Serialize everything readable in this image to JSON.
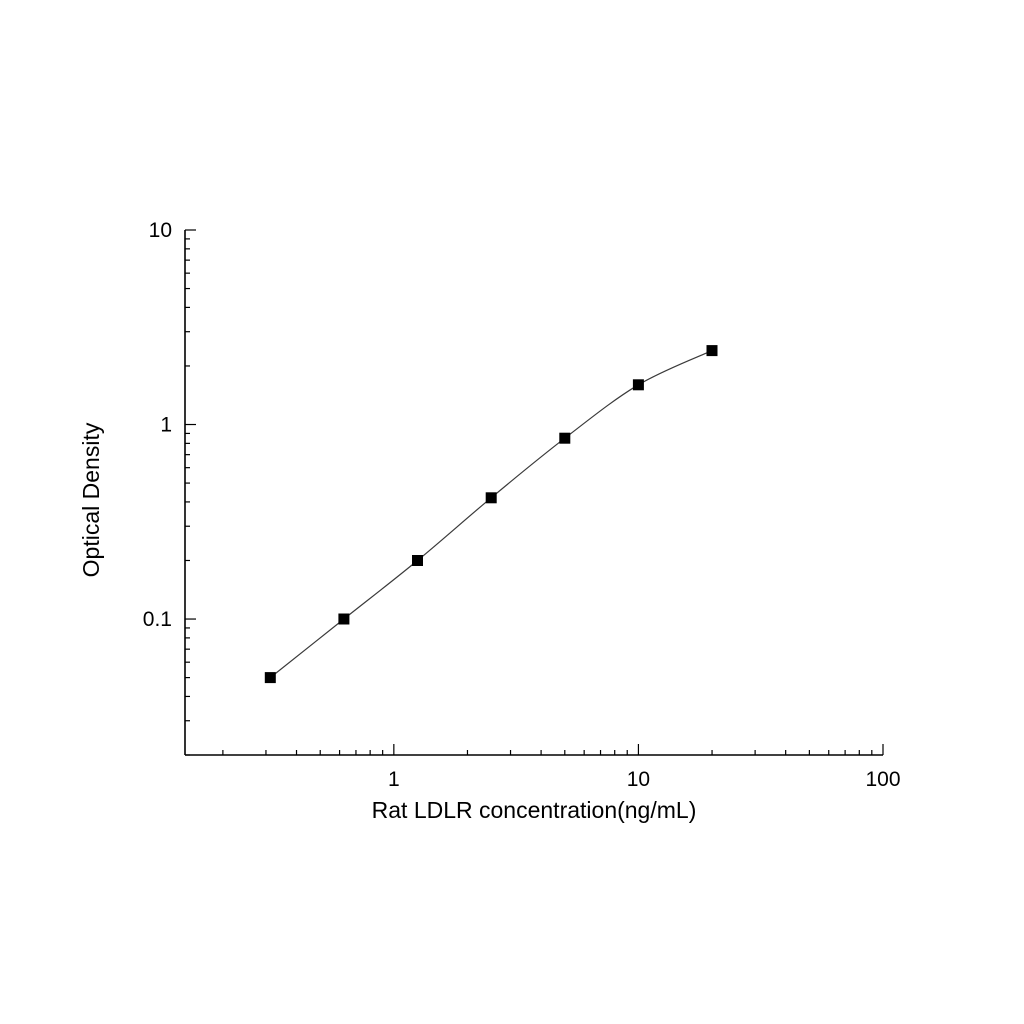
{
  "chart_data": {
    "type": "scatter",
    "title": "",
    "xlabel": "Rat LDLR concentration(ng/mL)",
    "ylabel": "Optical Density",
    "xscale": "log",
    "yscale": "log",
    "xlim": [
      0.14,
      100
    ],
    "ylim": [
      0.02,
      10
    ],
    "x_ticks": [
      1,
      10,
      100
    ],
    "x_tick_labels": [
      "1",
      "10",
      "100"
    ],
    "y_ticks": [
      0.1,
      1,
      10
    ],
    "y_tick_labels": [
      "0.1",
      "1",
      "10"
    ],
    "grid": false,
    "legend": "none",
    "marker": "filled-square",
    "marker_color": "#000000",
    "line_color": "#3a3a3a",
    "points": [
      {
        "x": 0.3125,
        "y": 0.05
      },
      {
        "x": 0.625,
        "y": 0.1
      },
      {
        "x": 1.25,
        "y": 0.2
      },
      {
        "x": 2.5,
        "y": 0.42
      },
      {
        "x": 5,
        "y": 0.85
      },
      {
        "x": 10,
        "y": 1.6
      },
      {
        "x": 20,
        "y": 2.4
      }
    ]
  }
}
